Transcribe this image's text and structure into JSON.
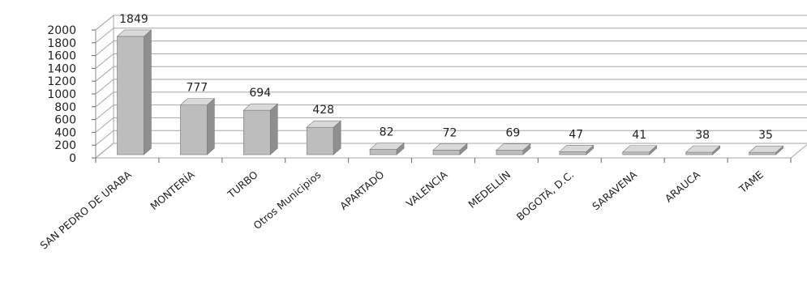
{
  "chart_data": {
    "type": "bar",
    "style": "3d-column",
    "categories": [
      "SAN PEDRO DE URABA",
      "MONTERÍA",
      "TURBO",
      "Otros Municipios",
      "APARTADÓ",
      "VALENCIA",
      "MEDELLÍN",
      "BOGOTÁ, D.C.",
      "SARAVENA",
      "ARAUCA",
      "TAME"
    ],
    "values": [
      1849,
      777,
      694,
      428,
      82,
      72,
      69,
      47,
      41,
      38,
      35
    ],
    "ylim": [
      0,
      2000
    ],
    "yticks": [
      "0",
      "200",
      "400",
      "600",
      "800",
      "1000",
      "1200",
      "1400",
      "1600",
      "1800",
      "2000"
    ],
    "data_labels": [
      "1849",
      "777",
      "694",
      "428",
      "82",
      "72",
      "69",
      "47",
      "41",
      "38",
      "35"
    ],
    "grid": true,
    "legend": "none",
    "colors": {
      "bar_front": "#bdbdbd",
      "bar_side": "#8f8f8f",
      "bar_top": "#d9d9d9",
      "grid": "#a6a6a6",
      "wall": "#ffffff"
    }
  }
}
